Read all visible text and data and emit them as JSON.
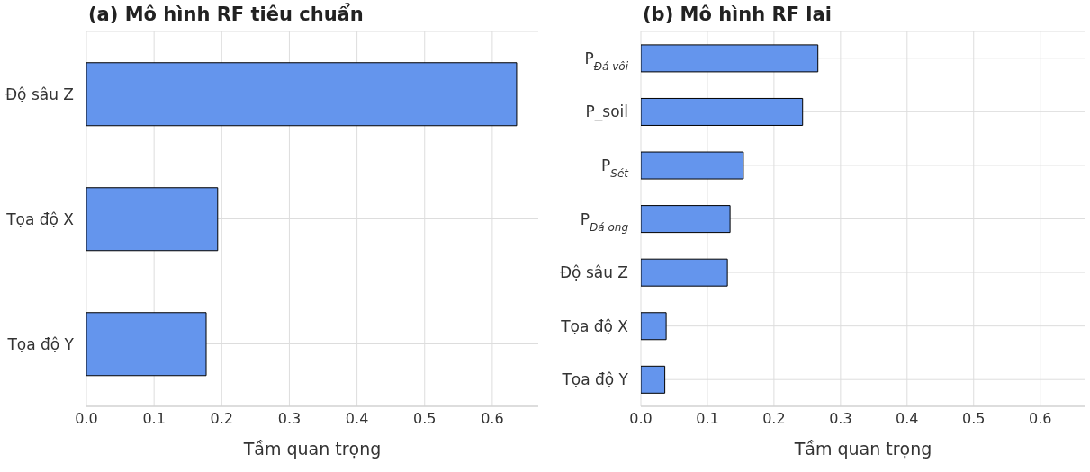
{
  "chart_data": [
    {
      "type": "bar",
      "orientation": "horizontal",
      "title": "(a) Mô hình RF tiêu chuẩn",
      "xlabel": "Tầm quan trọng",
      "categories": [
        "Độ sâu Z",
        "Tọa độ X",
        "Tọa độ Y"
      ],
      "values": [
        0.636,
        0.194,
        0.177
      ],
      "color": "#6495ed",
      "xlim": [
        0,
        0.668
      ],
      "xticks": [
        {
          "value": 0,
          "label": "0.0"
        },
        0.1,
        0.2,
        0.3,
        0.4,
        0.5,
        0.6
      ],
      "grid": true
    },
    {
      "type": "bar",
      "orientation": "horizontal",
      "title": "(b) Mô hình RF lai",
      "xlabel": "Tầm quan trọng",
      "categories": [
        "P$_{Đá vôi}$",
        "P_soil",
        "P$_{Sét}$",
        "P$_{Đá ong}$",
        "Độ sâu Z",
        "Tọa độ X",
        "Tọa độ Y"
      ],
      "values": [
        0.266,
        0.243,
        0.154,
        0.134,
        0.13,
        0.038,
        0.036
      ],
      "color": "#6495ed",
      "xlim": [
        0,
        0.668
      ],
      "xticks": [
        {
          "value": 0,
          "label": "0.0"
        },
        0.1,
        0.2,
        0.3,
        0.4,
        0.5,
        0.6
      ],
      "grid": true
    }
  ]
}
